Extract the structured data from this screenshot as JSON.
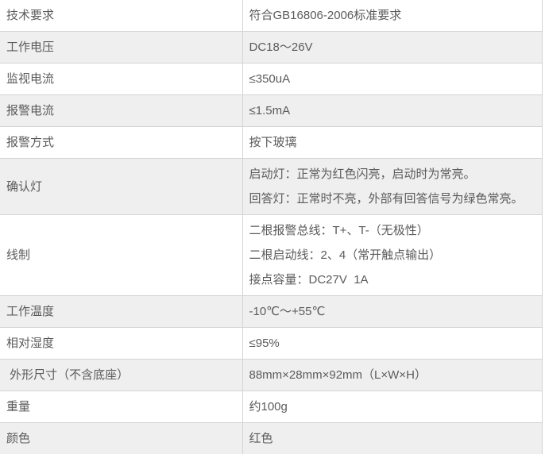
{
  "theme": {
    "row_bg": "#ffffff",
    "alt_row_bg": "#efefef",
    "border_color": "#d4d4d4",
    "text_color": "#5b5b5b"
  },
  "table": {
    "rows": [
      {
        "label": "技术要求",
        "values": [
          "符合GB16806-2006标准要求"
        ]
      },
      {
        "label": "工作电压",
        "values": [
          "DC18～26V"
        ]
      },
      {
        "label": "监视电流",
        "values": [
          "≤350uA"
        ]
      },
      {
        "label": "报警电流",
        "values": [
          "≤1.5mA"
        ]
      },
      {
        "label": "报警方式",
        "values": [
          "按下玻璃"
        ]
      },
      {
        "label": "确认灯",
        "values": [
          "启动灯：正常为红色闪亮，启动时为常亮。",
          "回答灯：正常时不亮，外部有回答信号为绿色常亮。"
        ]
      },
      {
        "label": "线制",
        "values": [
          "二根报警总线：T+、T-（无极性）",
          "二根启动线：2、4（常开触点输出）",
          "接点容量：DC27V  1A"
        ]
      },
      {
        "label": "工作温度",
        "values": [
          "-10℃～+55℃"
        ]
      },
      {
        "label": "相对湿度",
        "values": [
          "≤95%"
        ]
      },
      {
        "label": " 外形尺寸（不含底座）",
        "values": [
          "88mm×28mm×92mm（L×W×H）"
        ]
      },
      {
        "label": "重量",
        "values": [
          "约100g"
        ]
      },
      {
        "label": "颜色",
        "values": [
          "红色"
        ]
      }
    ]
  }
}
